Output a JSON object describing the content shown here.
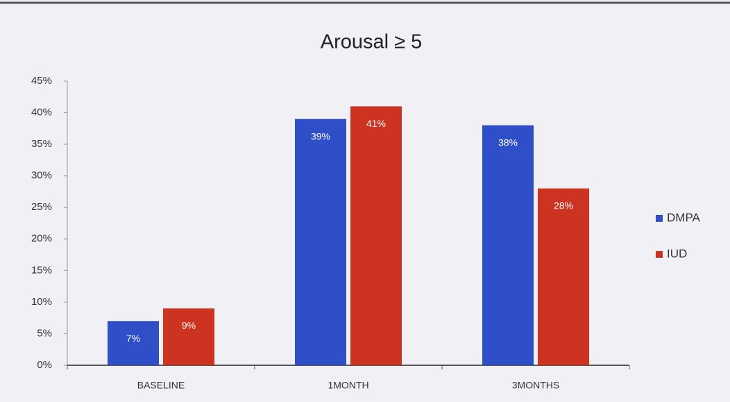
{
  "chart_data": {
    "type": "bar",
    "title": "Arousal ≥ 5",
    "categories": [
      "BASELINE",
      "1MONTH",
      "3MONTHS"
    ],
    "series": [
      {
        "name": "DMPA",
        "color": "#2f4fc8",
        "values": [
          7,
          39,
          38
        ],
        "value_labels": [
          "7%",
          "39%",
          "38%"
        ]
      },
      {
        "name": "IUD",
        "color": "#cc3320",
        "values": [
          9,
          41,
          28
        ],
        "value_labels": [
          "9%",
          "41%",
          "28%"
        ]
      }
    ],
    "ylim": [
      0,
      45
    ],
    "yticks": [
      {
        "value": 0,
        "label": "0%"
      },
      {
        "value": 5,
        "label": "5%"
      },
      {
        "value": 10,
        "label": "10%"
      },
      {
        "value": 15,
        "label": "15%"
      },
      {
        "value": 20,
        "label": "20%"
      },
      {
        "value": 25,
        "label": "25%"
      },
      {
        "value": 30,
        "label": "30%"
      },
      {
        "value": 35,
        "label": "35%"
      },
      {
        "value": 40,
        "label": "40%"
      },
      {
        "value": 45,
        "label": "45%"
      }
    ],
    "legend": "right"
  }
}
